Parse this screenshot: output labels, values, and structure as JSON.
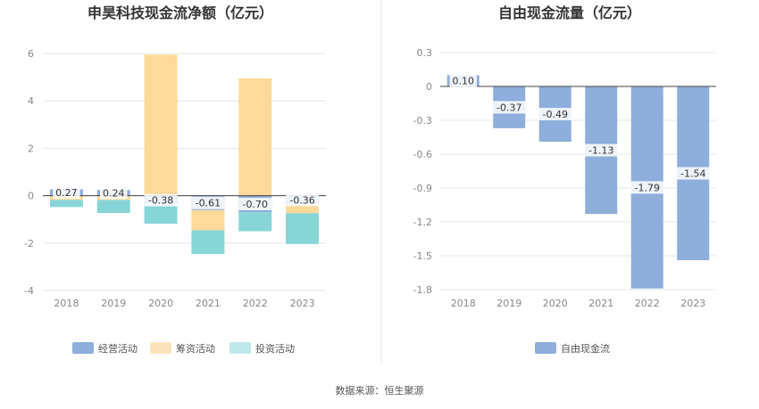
{
  "chart_data": [
    {
      "type": "bar",
      "stacked": true,
      "title": "申昊科技现金流净额（亿元）",
      "categories": [
        "2018",
        "2019",
        "2020",
        "2021",
        "2022",
        "2023"
      ],
      "ylim": [
        -4,
        6
      ],
      "yticks": [
        6,
        4,
        2,
        0,
        -2,
        -4
      ],
      "grid": true,
      "legend_position": "bottom",
      "series": [
        {
          "name": "经营活动",
          "color": "#8eaedb",
          "values": [
            0.27,
            0.24,
            -0.38,
            -0.61,
            -0.7,
            -0.36
          ],
          "labels": [
            "0.27",
            "0.24",
            "-0.38",
            "-0.61",
            "-0.70",
            "-0.36"
          ]
        },
        {
          "name": "筹资活动",
          "color": "#fdd99a",
          "values": [
            -0.18,
            -0.18,
            5.95,
            -0.85,
            4.95,
            -0.38
          ]
        },
        {
          "name": "投资活动",
          "color": "#88d5d8",
          "values": [
            -0.3,
            -0.55,
            -0.8,
            -1.0,
            -0.8,
            -1.3
          ]
        }
      ]
    },
    {
      "type": "bar",
      "title": "自由现金流量（亿元）",
      "categories": [
        "2018",
        "2019",
        "2020",
        "2021",
        "2022",
        "2023"
      ],
      "ylim": [
        -1.8,
        0.3
      ],
      "yticks": [
        "0.3",
        "0",
        "-0.3",
        "-0.6",
        "-0.9",
        "-1.2",
        "-1.5",
        "-1.8"
      ],
      "grid": true,
      "legend_position": "bottom",
      "series": [
        {
          "name": "自由现金流",
          "color": "#8eaedb",
          "values": [
            0.1,
            -0.37,
            -0.49,
            -1.13,
            -1.79,
            -1.54
          ],
          "labels": [
            "0.10",
            "-0.37",
            "-0.49",
            "-1.13",
            "-1.79",
            "-1.54"
          ]
        }
      ]
    }
  ],
  "legend_colors": {
    "经营活动": "#8eaedb",
    "筹资活动": "#fde3bc",
    "投资活动": "#bfe8ea",
    "自由现金流": "#8eaedb"
  },
  "source": "数据来源：恒生聚源"
}
